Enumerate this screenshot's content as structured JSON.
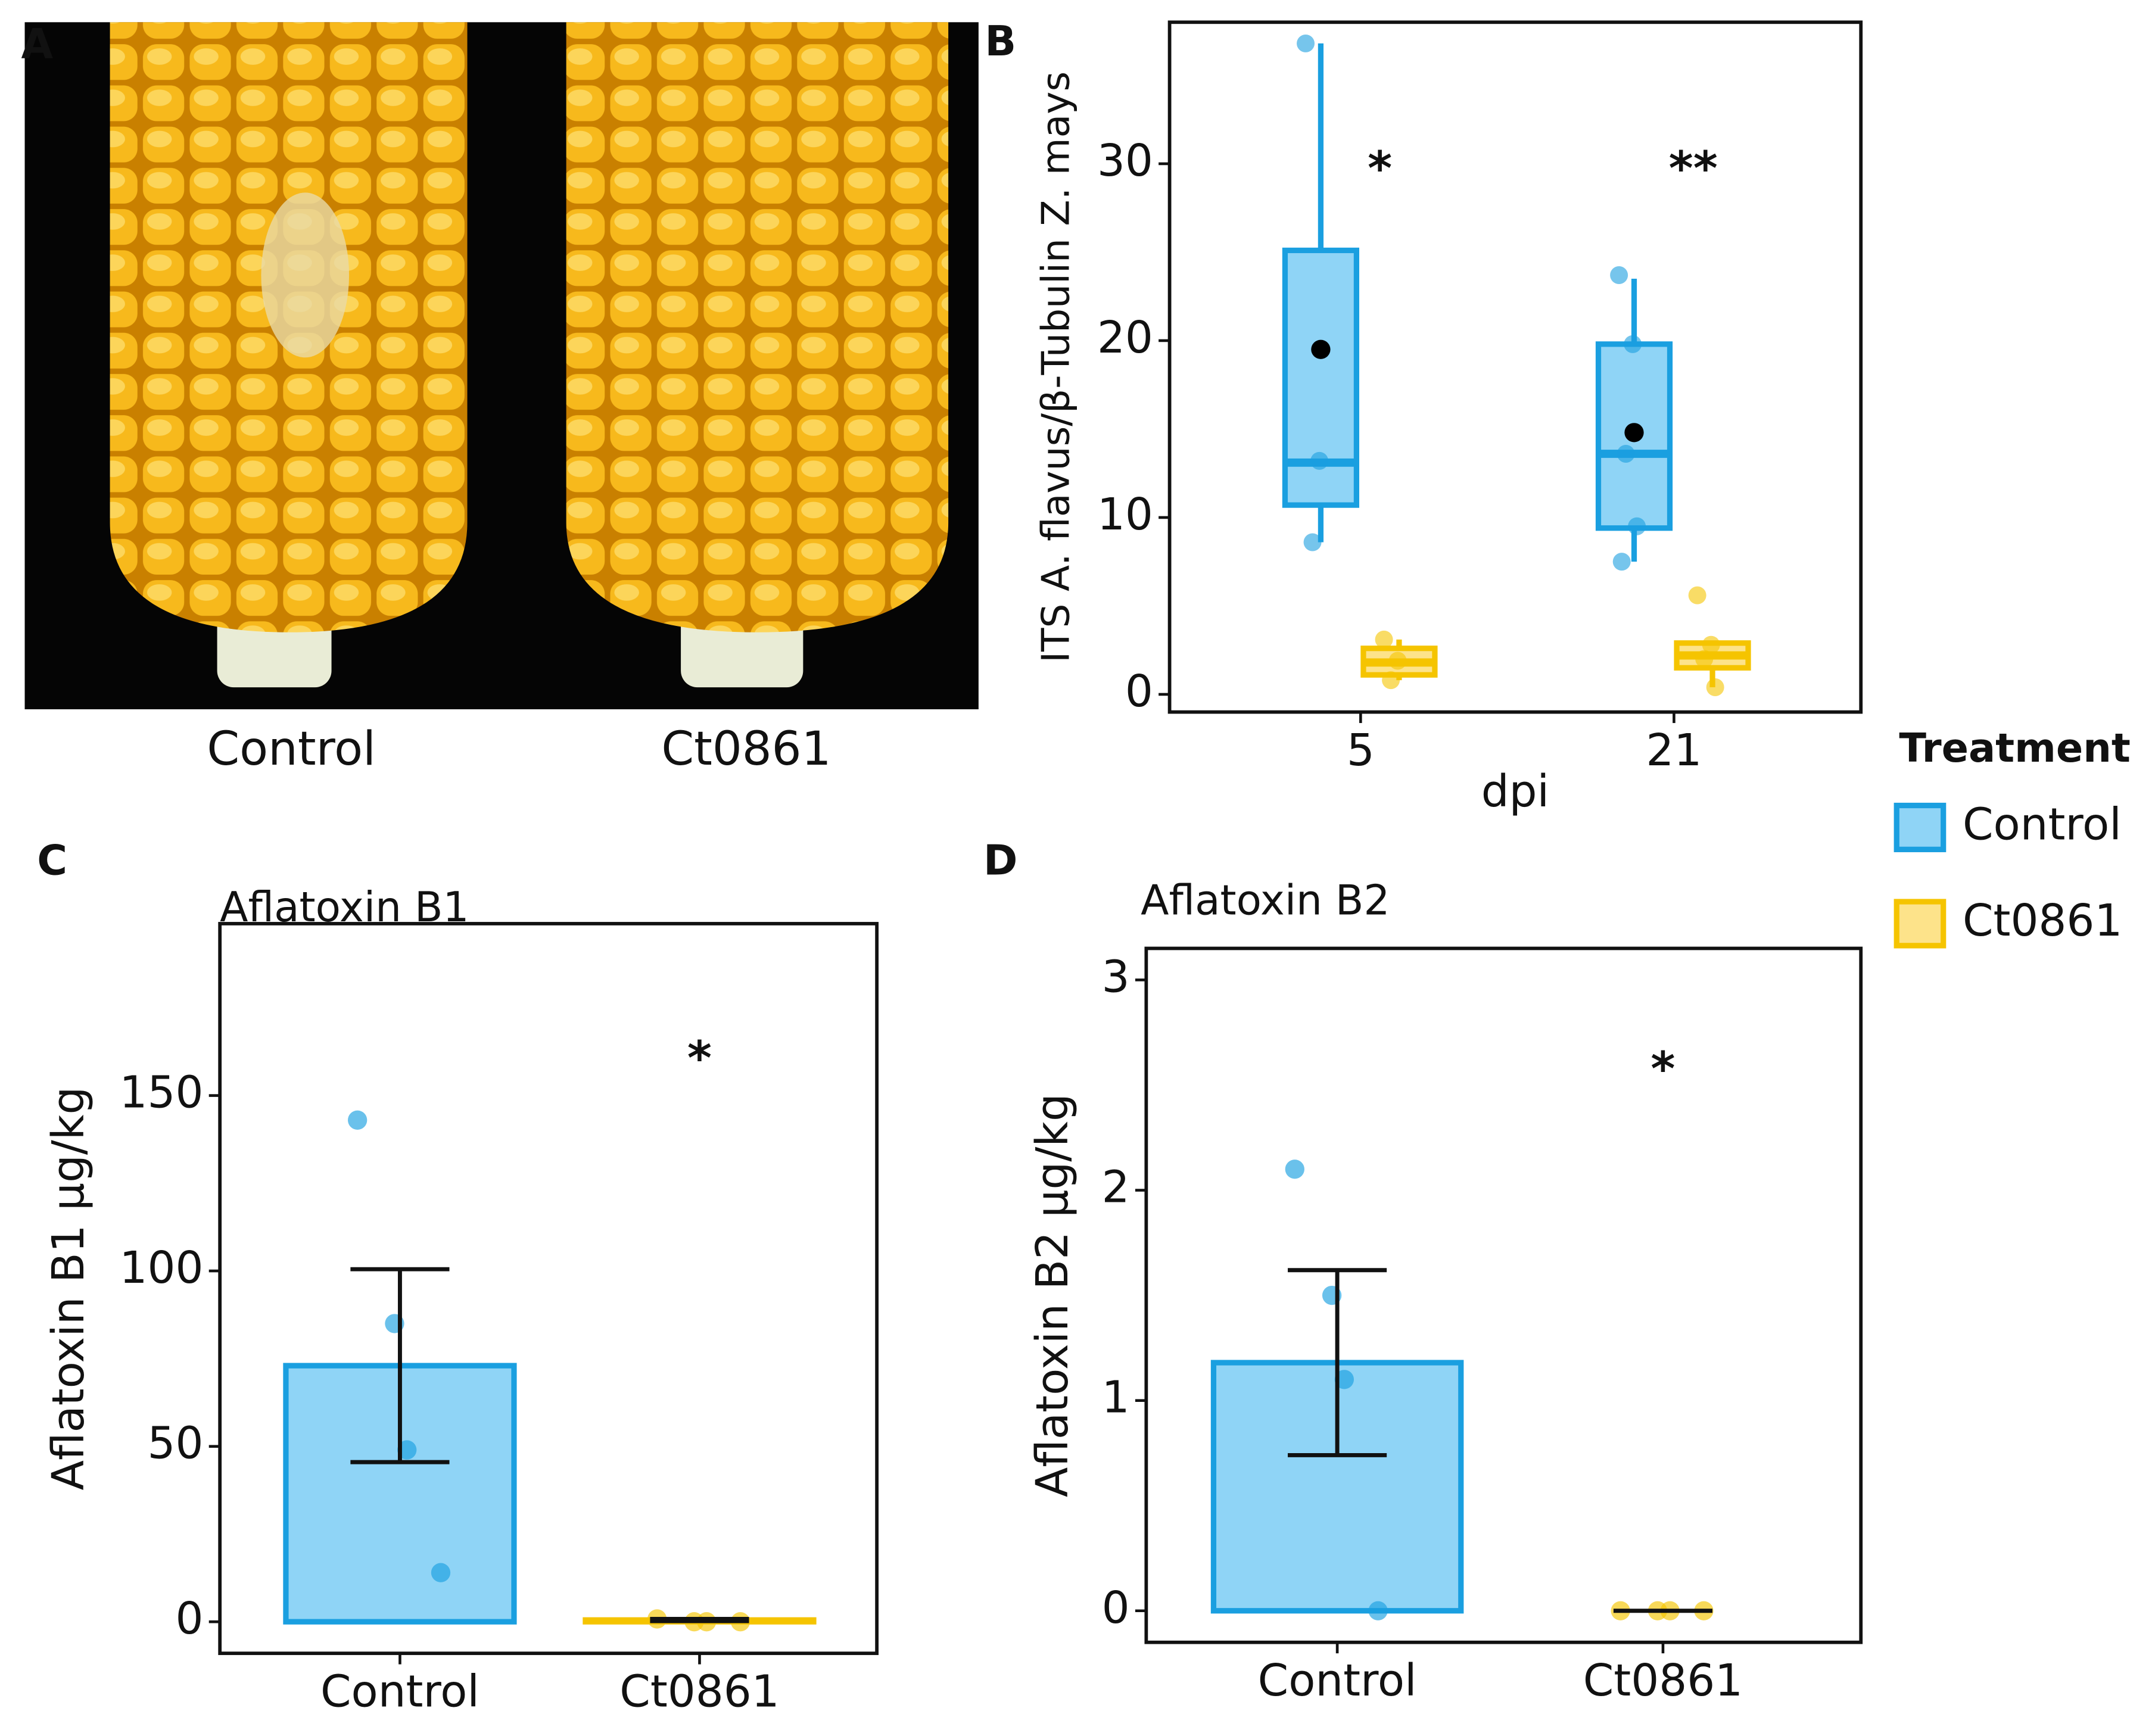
{
  "chart_data": [
    {
      "type": "image",
      "panel": "A",
      "labels": [
        "Control",
        "Ct0861"
      ]
    },
    {
      "type": "box",
      "panel": "B",
      "categories": [
        "5",
        "21"
      ],
      "xlabel": "dpi",
      "ylabel": "ITS A. flavus/β-Tubulin Z. mays",
      "ylim": [
        -1,
        38
      ],
      "yticks": [
        0,
        10,
        20,
        30
      ],
      "annotations": [
        {
          "text": "*",
          "x": "5",
          "y": 30
        },
        {
          "text": "**",
          "x": "21",
          "y": 30
        }
      ],
      "legend": {
        "title": "Treatment",
        "position": "right"
      },
      "series": [
        {
          "name": "Control",
          "color": "#1a9fe0",
          "fill": "#8fd4f6",
          "boxes": [
            {
              "min": 8.6,
              "q1": 10.7,
              "median": 13.1,
              "q3": 25.1,
              "max": 36.8,
              "mean": 19.5,
              "points": [
                36.8,
                13.2,
                8.6
              ]
            },
            {
              "min": 7.5,
              "q1": 9.4,
              "median": 13.6,
              "q3": 19.8,
              "max": 23.5,
              "mean": 14.8,
              "points": [
                23.7,
                19.8,
                13.6,
                9.5,
                7.5
              ]
            }
          ]
        },
        {
          "name": "Ct0861",
          "color": "#f5c400",
          "fill": "#fde38a",
          "boxes": [
            {
              "min": 0.8,
              "q1": 1.1,
              "median": 1.8,
              "q3": 2.6,
              "max": 3.1,
              "points": [
                3.1,
                1.9,
                0.8
              ]
            },
            {
              "min": 0.4,
              "q1": 1.5,
              "median": 2.2,
              "q3": 2.9,
              "max": 2.9,
              "points": [
                5.6,
                2.8,
                2.0,
                0.4
              ]
            }
          ]
        }
      ]
    },
    {
      "type": "bar",
      "panel": "C",
      "title": "Aflatoxin B1",
      "ylabel": "Aflatoxin B1 µg/kg",
      "categories": [
        "Control",
        "Ct0861"
      ],
      "values": [
        73,
        0.5
      ],
      "errors": [
        27.5,
        0.3
      ],
      "points": [
        [
          143,
          85,
          49,
          14
        ],
        [
          0.8,
          0,
          0,
          0
        ]
      ],
      "colors": [
        "#1a9fe0",
        "#f5c400"
      ],
      "fills": [
        "#8fd4f6",
        "#fde38a"
      ],
      "ylim": [
        -9,
        199
      ],
      "yticks": [
        0,
        50,
        100,
        150
      ],
      "annotations": [
        {
          "text": "*",
          "x": "Ct0861",
          "y": 162
        }
      ]
    },
    {
      "type": "bar",
      "panel": "D",
      "title": "Aflatoxin B2",
      "ylabel": "Aflatoxin B2 µg/kg",
      "categories": [
        "Control",
        "Ct0861"
      ],
      "values": [
        1.18,
        0
      ],
      "errors": [
        0.44,
        0
      ],
      "points": [
        [
          2.1,
          1.5,
          1.1,
          0
        ],
        [
          0,
          0,
          0,
          0
        ]
      ],
      "colors": [
        "#1a9fe0",
        "#f5c400"
      ],
      "fills": [
        "#8fd4f6",
        "#fde38a"
      ],
      "ylim": [
        -0.15,
        3.15
      ],
      "yticks": [
        0,
        1,
        2,
        3
      ],
      "annotations": [
        {
          "text": "*",
          "x": "Ct0861",
          "y": 2.6
        }
      ]
    }
  ]
}
